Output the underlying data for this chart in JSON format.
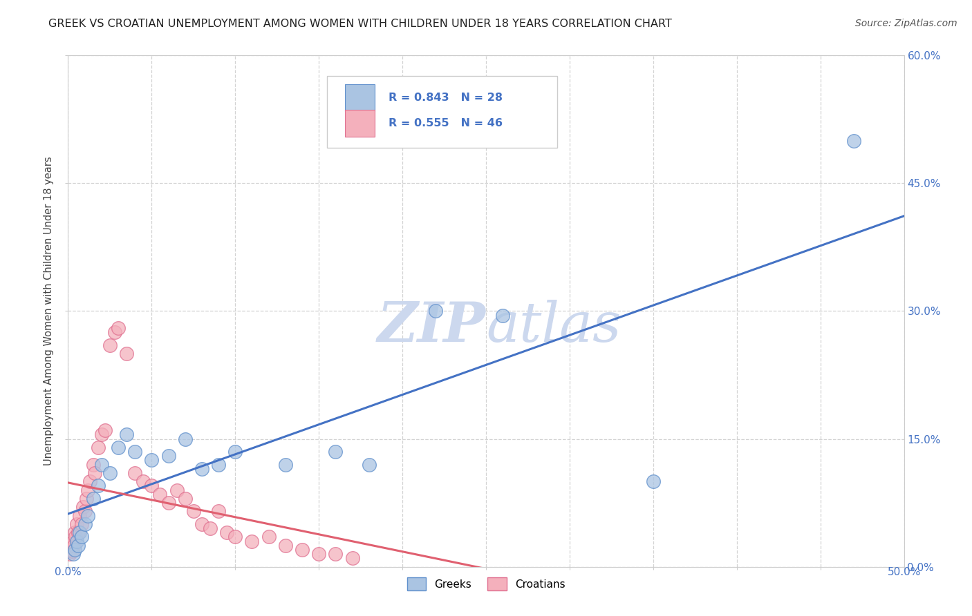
{
  "title": "GREEK VS CROATIAN UNEMPLOYMENT AMONG WOMEN WITH CHILDREN UNDER 18 YEARS CORRELATION CHART",
  "source": "Source: ZipAtlas.com",
  "ylabel_label": "Unemployment Among Women with Children Under 18 years",
  "legend_greeks": "Greeks",
  "legend_croatians": "Croatians",
  "greek_R": "0.843",
  "greek_N": "28",
  "croatian_R": "0.555",
  "croatian_N": "46",
  "blue_fill": "#aac4e2",
  "blue_edge": "#6090cc",
  "blue_line_color": "#4472c4",
  "pink_fill": "#f4b0bc",
  "pink_edge": "#e07090",
  "pink_line_color": "#e06070",
  "title_color": "#222222",
  "axis_tick_color": "#4472c4",
  "legend_text_color": "#4472c4",
  "grid_color": "#c8c8c8",
  "watermark_color": "#ccd8ee",
  "background_color": "#ffffff",
  "xlim": [
    0,
    50
  ],
  "ylim": [
    0,
    60
  ],
  "xticks": [
    0,
    5,
    10,
    15,
    20,
    25,
    30,
    35,
    40,
    45,
    50
  ],
  "yticks_right": [
    0,
    15,
    30,
    45,
    60
  ],
  "ytick_labels": [
    "0.0%",
    "15.0%",
    "30.0%",
    "45.0%",
    "60.0%"
  ],
  "greeks_x": [
    0.3,
    0.4,
    0.5,
    0.6,
    0.7,
    0.8,
    1.0,
    1.2,
    1.5,
    1.8,
    2.0,
    2.5,
    3.0,
    3.5,
    4.0,
    5.0,
    6.0,
    7.0,
    8.0,
    9.0,
    10.0,
    13.0,
    16.0,
    18.0,
    22.0,
    26.0,
    35.0,
    47.0
  ],
  "greeks_y": [
    1.5,
    2.0,
    3.0,
    2.5,
    4.0,
    3.5,
    5.0,
    6.0,
    8.0,
    9.5,
    12.0,
    11.0,
    14.0,
    15.5,
    13.5,
    12.5,
    13.0,
    15.0,
    11.5,
    12.0,
    13.5,
    12.0,
    13.5,
    12.0,
    30.0,
    29.5,
    10.0,
    50.0
  ],
  "croatians_x": [
    0.1,
    0.15,
    0.2,
    0.25,
    0.3,
    0.35,
    0.4,
    0.45,
    0.5,
    0.6,
    0.7,
    0.8,
    0.9,
    1.0,
    1.1,
    1.2,
    1.3,
    1.5,
    1.6,
    1.8,
    2.0,
    2.2,
    2.5,
    2.8,
    3.0,
    3.5,
    4.0,
    4.5,
    5.0,
    5.5,
    6.0,
    6.5,
    7.0,
    7.5,
    8.0,
    8.5,
    9.0,
    9.5,
    10.0,
    11.0,
    12.0,
    13.0,
    14.0,
    15.0,
    16.0,
    17.0
  ],
  "croatians_y": [
    1.5,
    2.0,
    2.5,
    1.8,
    3.0,
    2.5,
    4.0,
    3.5,
    5.0,
    4.0,
    6.0,
    5.0,
    7.0,
    6.5,
    8.0,
    9.0,
    10.0,
    12.0,
    11.0,
    14.0,
    15.5,
    16.0,
    26.0,
    27.5,
    28.0,
    25.0,
    11.0,
    10.0,
    9.5,
    8.5,
    7.5,
    9.0,
    8.0,
    6.5,
    5.0,
    4.5,
    6.5,
    4.0,
    3.5,
    3.0,
    3.5,
    2.5,
    2.0,
    1.5,
    1.5,
    1.0
  ]
}
